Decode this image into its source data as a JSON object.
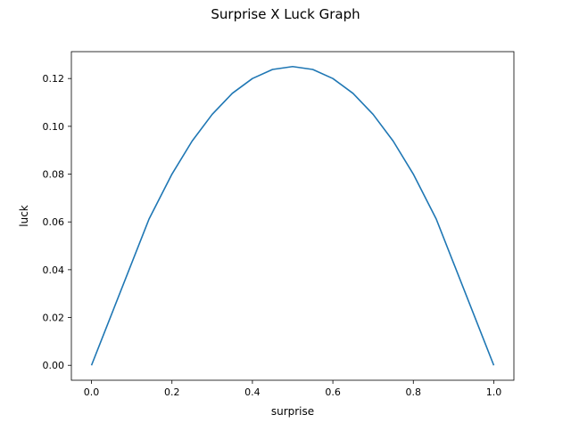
{
  "chart_data": {
    "type": "line",
    "title": "Surprise X Luck Graph",
    "xlabel": "surprise",
    "ylabel": "luck",
    "xlim": [
      -0.05,
      1.05
    ],
    "ylim": [
      -0.00625,
      0.13125
    ],
    "xticks": [
      0.0,
      0.2,
      0.4,
      0.6,
      0.8,
      1.0
    ],
    "xtick_labels": [
      "0.0",
      "0.2",
      "0.4",
      "0.6",
      "0.8",
      "1.0"
    ],
    "yticks": [
      0.0,
      0.02,
      0.04,
      0.06,
      0.08,
      0.1,
      0.12
    ],
    "ytick_labels": [
      "0.00",
      "0.02",
      "0.04",
      "0.06",
      "0.08",
      "0.10",
      "0.12"
    ],
    "grid": false,
    "line_color": "#1f77b4",
    "series": [
      {
        "x": [
          0.0,
          0.143,
          0.2,
          0.25,
          0.3,
          0.35,
          0.4,
          0.45,
          0.5,
          0.55,
          0.6,
          0.65,
          0.7,
          0.75,
          0.8,
          0.857,
          1.0
        ],
        "y": [
          0.0,
          0.0612,
          0.08,
          0.0938,
          0.105,
          0.1138,
          0.12,
          0.1238,
          0.125,
          0.1238,
          0.12,
          0.1138,
          0.105,
          0.0938,
          0.08,
          0.0612,
          0.0
        ]
      }
    ]
  }
}
